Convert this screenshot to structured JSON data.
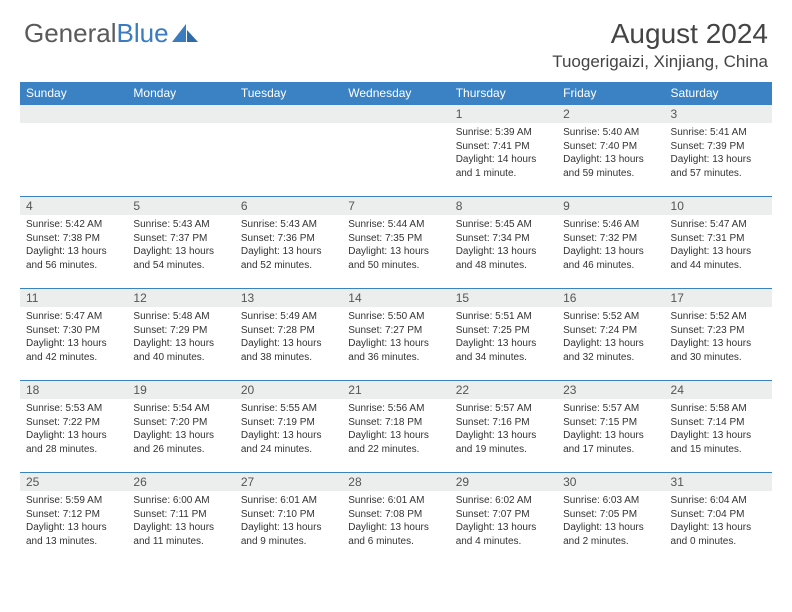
{
  "logo": {
    "part1": "General",
    "part2": "Blue"
  },
  "title": "August 2024",
  "location": "Tuogerigaizi, Xinjiang, China",
  "colors": {
    "header_bg": "#3b82c4",
    "header_text": "#ffffff",
    "daynum_bg": "#eceded",
    "border": "#3b82c4",
    "logo_grey": "#5a5a5a",
    "logo_blue": "#3b7bbf"
  },
  "day_headers": [
    "Sunday",
    "Monday",
    "Tuesday",
    "Wednesday",
    "Thursday",
    "Friday",
    "Saturday"
  ],
  "weeks": [
    [
      {
        "n": "",
        "sr": "",
        "ss": "",
        "dl": ""
      },
      {
        "n": "",
        "sr": "",
        "ss": "",
        "dl": ""
      },
      {
        "n": "",
        "sr": "",
        "ss": "",
        "dl": ""
      },
      {
        "n": "",
        "sr": "",
        "ss": "",
        "dl": ""
      },
      {
        "n": "1",
        "sr": "Sunrise: 5:39 AM",
        "ss": "Sunset: 7:41 PM",
        "dl": "Daylight: 14 hours and 1 minute."
      },
      {
        "n": "2",
        "sr": "Sunrise: 5:40 AM",
        "ss": "Sunset: 7:40 PM",
        "dl": "Daylight: 13 hours and 59 minutes."
      },
      {
        "n": "3",
        "sr": "Sunrise: 5:41 AM",
        "ss": "Sunset: 7:39 PM",
        "dl": "Daylight: 13 hours and 57 minutes."
      }
    ],
    [
      {
        "n": "4",
        "sr": "Sunrise: 5:42 AM",
        "ss": "Sunset: 7:38 PM",
        "dl": "Daylight: 13 hours and 56 minutes."
      },
      {
        "n": "5",
        "sr": "Sunrise: 5:43 AM",
        "ss": "Sunset: 7:37 PM",
        "dl": "Daylight: 13 hours and 54 minutes."
      },
      {
        "n": "6",
        "sr": "Sunrise: 5:43 AM",
        "ss": "Sunset: 7:36 PM",
        "dl": "Daylight: 13 hours and 52 minutes."
      },
      {
        "n": "7",
        "sr": "Sunrise: 5:44 AM",
        "ss": "Sunset: 7:35 PM",
        "dl": "Daylight: 13 hours and 50 minutes."
      },
      {
        "n": "8",
        "sr": "Sunrise: 5:45 AM",
        "ss": "Sunset: 7:34 PM",
        "dl": "Daylight: 13 hours and 48 minutes."
      },
      {
        "n": "9",
        "sr": "Sunrise: 5:46 AM",
        "ss": "Sunset: 7:32 PM",
        "dl": "Daylight: 13 hours and 46 minutes."
      },
      {
        "n": "10",
        "sr": "Sunrise: 5:47 AM",
        "ss": "Sunset: 7:31 PM",
        "dl": "Daylight: 13 hours and 44 minutes."
      }
    ],
    [
      {
        "n": "11",
        "sr": "Sunrise: 5:47 AM",
        "ss": "Sunset: 7:30 PM",
        "dl": "Daylight: 13 hours and 42 minutes."
      },
      {
        "n": "12",
        "sr": "Sunrise: 5:48 AM",
        "ss": "Sunset: 7:29 PM",
        "dl": "Daylight: 13 hours and 40 minutes."
      },
      {
        "n": "13",
        "sr": "Sunrise: 5:49 AM",
        "ss": "Sunset: 7:28 PM",
        "dl": "Daylight: 13 hours and 38 minutes."
      },
      {
        "n": "14",
        "sr": "Sunrise: 5:50 AM",
        "ss": "Sunset: 7:27 PM",
        "dl": "Daylight: 13 hours and 36 minutes."
      },
      {
        "n": "15",
        "sr": "Sunrise: 5:51 AM",
        "ss": "Sunset: 7:25 PM",
        "dl": "Daylight: 13 hours and 34 minutes."
      },
      {
        "n": "16",
        "sr": "Sunrise: 5:52 AM",
        "ss": "Sunset: 7:24 PM",
        "dl": "Daylight: 13 hours and 32 minutes."
      },
      {
        "n": "17",
        "sr": "Sunrise: 5:52 AM",
        "ss": "Sunset: 7:23 PM",
        "dl": "Daylight: 13 hours and 30 minutes."
      }
    ],
    [
      {
        "n": "18",
        "sr": "Sunrise: 5:53 AM",
        "ss": "Sunset: 7:22 PM",
        "dl": "Daylight: 13 hours and 28 minutes."
      },
      {
        "n": "19",
        "sr": "Sunrise: 5:54 AM",
        "ss": "Sunset: 7:20 PM",
        "dl": "Daylight: 13 hours and 26 minutes."
      },
      {
        "n": "20",
        "sr": "Sunrise: 5:55 AM",
        "ss": "Sunset: 7:19 PM",
        "dl": "Daylight: 13 hours and 24 minutes."
      },
      {
        "n": "21",
        "sr": "Sunrise: 5:56 AM",
        "ss": "Sunset: 7:18 PM",
        "dl": "Daylight: 13 hours and 22 minutes."
      },
      {
        "n": "22",
        "sr": "Sunrise: 5:57 AM",
        "ss": "Sunset: 7:16 PM",
        "dl": "Daylight: 13 hours and 19 minutes."
      },
      {
        "n": "23",
        "sr": "Sunrise: 5:57 AM",
        "ss": "Sunset: 7:15 PM",
        "dl": "Daylight: 13 hours and 17 minutes."
      },
      {
        "n": "24",
        "sr": "Sunrise: 5:58 AM",
        "ss": "Sunset: 7:14 PM",
        "dl": "Daylight: 13 hours and 15 minutes."
      }
    ],
    [
      {
        "n": "25",
        "sr": "Sunrise: 5:59 AM",
        "ss": "Sunset: 7:12 PM",
        "dl": "Daylight: 13 hours and 13 minutes."
      },
      {
        "n": "26",
        "sr": "Sunrise: 6:00 AM",
        "ss": "Sunset: 7:11 PM",
        "dl": "Daylight: 13 hours and 11 minutes."
      },
      {
        "n": "27",
        "sr": "Sunrise: 6:01 AM",
        "ss": "Sunset: 7:10 PM",
        "dl": "Daylight: 13 hours and 9 minutes."
      },
      {
        "n": "28",
        "sr": "Sunrise: 6:01 AM",
        "ss": "Sunset: 7:08 PM",
        "dl": "Daylight: 13 hours and 6 minutes."
      },
      {
        "n": "29",
        "sr": "Sunrise: 6:02 AM",
        "ss": "Sunset: 7:07 PM",
        "dl": "Daylight: 13 hours and 4 minutes."
      },
      {
        "n": "30",
        "sr": "Sunrise: 6:03 AM",
        "ss": "Sunset: 7:05 PM",
        "dl": "Daylight: 13 hours and 2 minutes."
      },
      {
        "n": "31",
        "sr": "Sunrise: 6:04 AM",
        "ss": "Sunset: 7:04 PM",
        "dl": "Daylight: 13 hours and 0 minutes."
      }
    ]
  ]
}
